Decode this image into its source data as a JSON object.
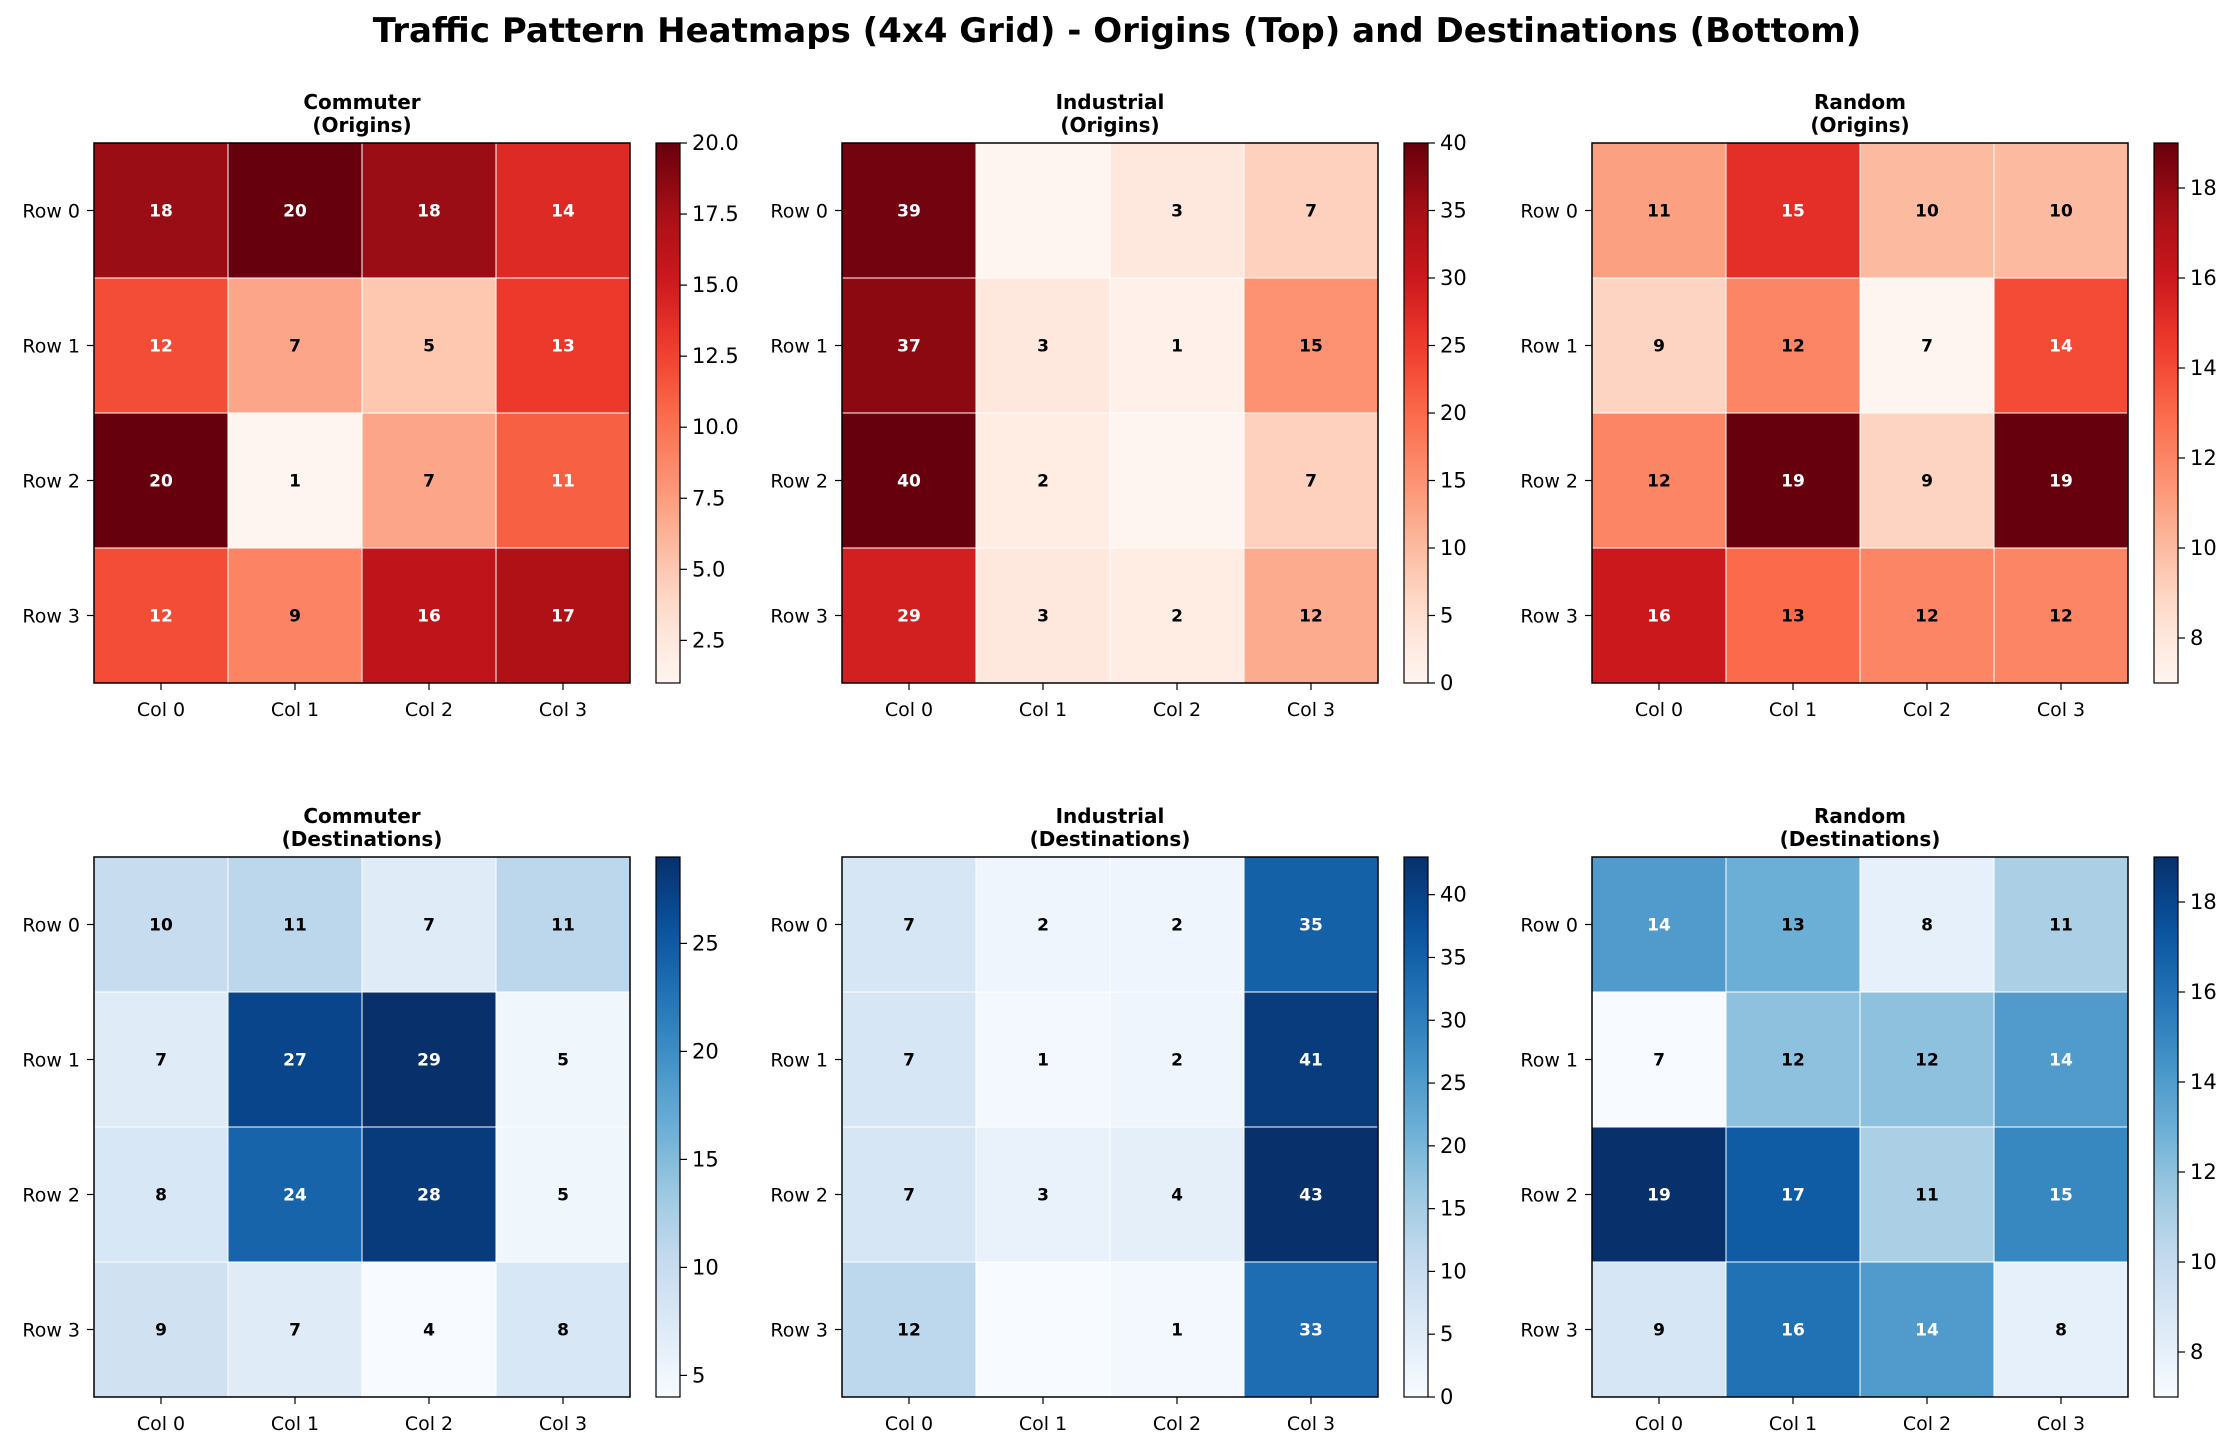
{
  "figure_title": "Traffic Pattern Heatmaps (4x4 Grid) - Origins (Top) and Destinations (Bottom)",
  "chart_data": [
    {
      "type": "heatmap",
      "title": "Commuter",
      "subtitle": "(Origins)",
      "colormap": "Reds",
      "x_labels": [
        "Col 0",
        "Col 1",
        "Col 2",
        "Col 3"
      ],
      "y_labels": [
        "Row 0",
        "Row 1",
        "Row 2",
        "Row 3"
      ],
      "values": [
        [
          18,
          20,
          18,
          14
        ],
        [
          12,
          7,
          5,
          13
        ],
        [
          20,
          1,
          7,
          11
        ],
        [
          12,
          9,
          16,
          17
        ]
      ],
      "vmin": 1,
      "vmax": 20,
      "colorbar_ticks": [
        "2.5",
        "5.0",
        "7.5",
        "10.0",
        "12.5",
        "15.0",
        "17.5",
        "20.0"
      ]
    },
    {
      "type": "heatmap",
      "title": "Industrial",
      "subtitle": "(Origins)",
      "colormap": "Reds",
      "x_labels": [
        "Col 0",
        "Col 1",
        "Col 2",
        "Col 3"
      ],
      "y_labels": [
        "Row 0",
        "Row 1",
        "Row 2",
        "Row 3"
      ],
      "values": [
        [
          39,
          0,
          3,
          7
        ],
        [
          37,
          3,
          1,
          15
        ],
        [
          40,
          2,
          0,
          7
        ],
        [
          29,
          3,
          2,
          12
        ]
      ],
      "vmin": 0,
      "vmax": 40,
      "colorbar_ticks": [
        "0",
        "5",
        "10",
        "15",
        "20",
        "25",
        "30",
        "35",
        "40"
      ]
    },
    {
      "type": "heatmap",
      "title": "Random",
      "subtitle": "(Origins)",
      "colormap": "Reds",
      "x_labels": [
        "Col 0",
        "Col 1",
        "Col 2",
        "Col 3"
      ],
      "y_labels": [
        "Row 0",
        "Row 1",
        "Row 2",
        "Row 3"
      ],
      "values": [
        [
          11,
          15,
          10,
          10
        ],
        [
          9,
          12,
          7,
          14
        ],
        [
          12,
          19,
          9,
          19
        ],
        [
          16,
          13,
          12,
          12
        ]
      ],
      "vmin": 7,
      "vmax": 19,
      "colorbar_ticks": [
        "8",
        "10",
        "12",
        "14",
        "16",
        "18"
      ]
    },
    {
      "type": "heatmap",
      "title": "Commuter",
      "subtitle": "(Destinations)",
      "colormap": "Blues",
      "x_labels": [
        "Col 0",
        "Col 1",
        "Col 2",
        "Col 3"
      ],
      "y_labels": [
        "Row 0",
        "Row 1",
        "Row 2",
        "Row 3"
      ],
      "values": [
        [
          10,
          11,
          7,
          11
        ],
        [
          7,
          27,
          29,
          5
        ],
        [
          8,
          24,
          28,
          5
        ],
        [
          9,
          7,
          4,
          8
        ]
      ],
      "vmin": 4,
      "vmax": 29,
      "colorbar_ticks": [
        "5",
        "10",
        "15",
        "20",
        "25"
      ]
    },
    {
      "type": "heatmap",
      "title": "Industrial",
      "subtitle": "(Destinations)",
      "colormap": "Blues",
      "x_labels": [
        "Col 0",
        "Col 1",
        "Col 2",
        "Col 3"
      ],
      "y_labels": [
        "Row 0",
        "Row 1",
        "Row 2",
        "Row 3"
      ],
      "values": [
        [
          7,
          2,
          2,
          35
        ],
        [
          7,
          1,
          2,
          41
        ],
        [
          7,
          3,
          4,
          43
        ],
        [
          12,
          0,
          1,
          33
        ]
      ],
      "vmin": 0,
      "vmax": 43,
      "colorbar_ticks": [
        "0",
        "5",
        "10",
        "15",
        "20",
        "25",
        "30",
        "35",
        "40"
      ]
    },
    {
      "type": "heatmap",
      "title": "Random",
      "subtitle": "(Destinations)",
      "colormap": "Blues",
      "x_labels": [
        "Col 0",
        "Col 1",
        "Col 2",
        "Col 3"
      ],
      "y_labels": [
        "Row 0",
        "Row 1",
        "Row 2",
        "Row 3"
      ],
      "values": [
        [
          14,
          13,
          8,
          11
        ],
        [
          7,
          12,
          12,
          14
        ],
        [
          19,
          17,
          11,
          15
        ],
        [
          9,
          16,
          14,
          8
        ]
      ],
      "vmin": 7,
      "vmax": 19,
      "colorbar_ticks": [
        "8",
        "10",
        "12",
        "14",
        "16",
        "18"
      ]
    }
  ]
}
